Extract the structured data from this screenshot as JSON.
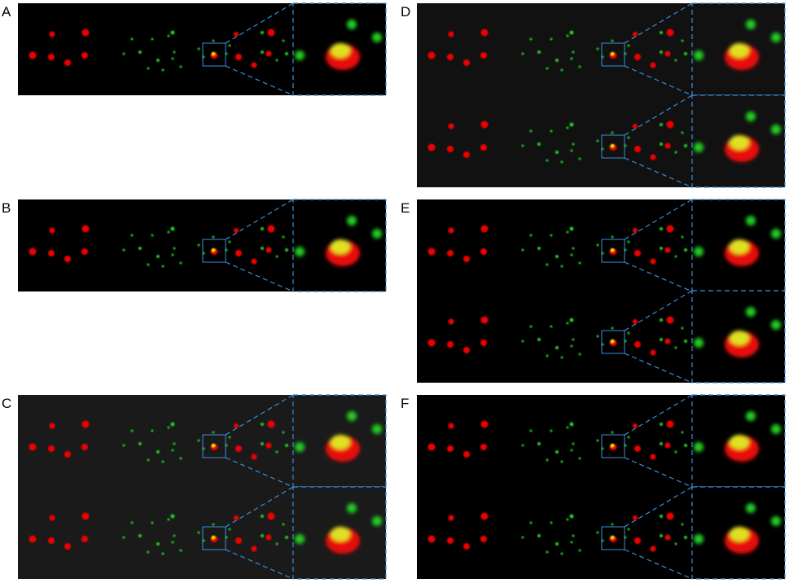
{
  "panels": [
    {
      "label": "A"
    },
    {
      "label": "B"
    },
    {
      "label": "C"
    },
    {
      "label": "D"
    },
    {
      "label": "E"
    },
    {
      "label": "F"
    }
  ]
}
